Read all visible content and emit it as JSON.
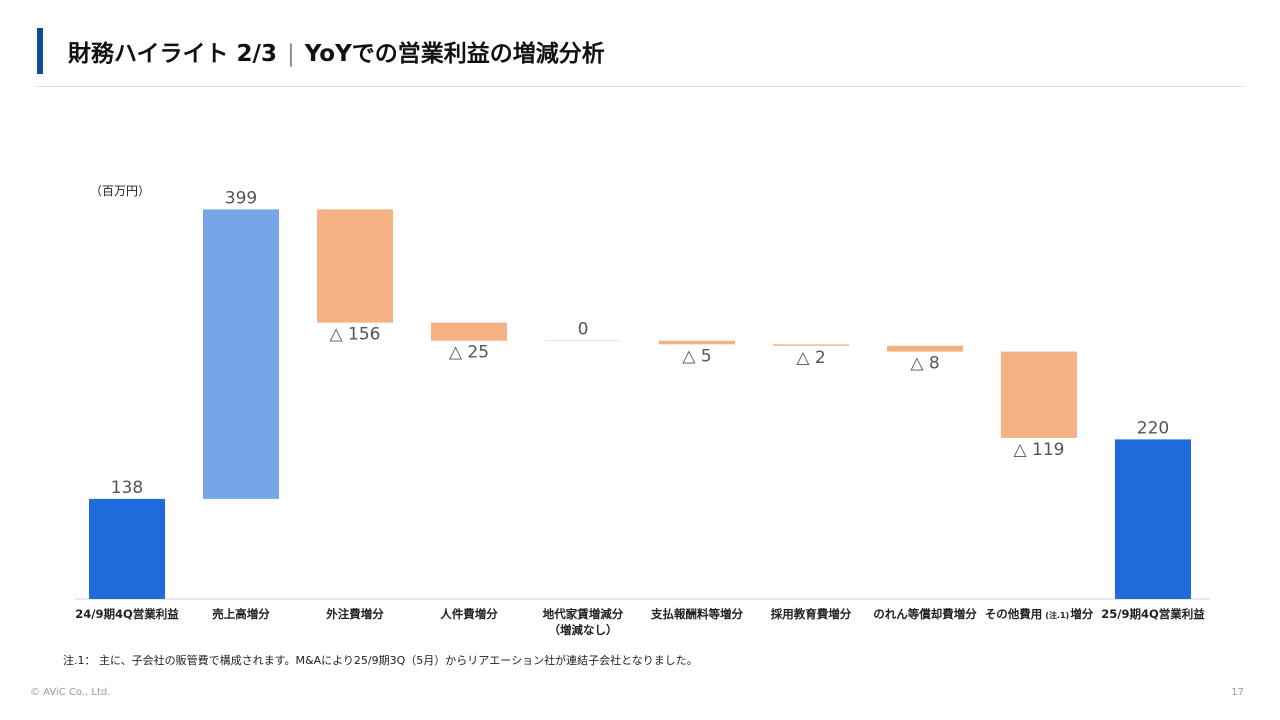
{
  "header": {
    "title_main": "財務ハイライト 2/3",
    "title_sep": "|",
    "title_sub": "YoYでの営業利益の増減分析",
    "accent_color": "#0f4c9a"
  },
  "chart_data": {
    "type": "waterfall",
    "unit_label": "（百万円）",
    "steps": [
      {
        "category": "24/9期4Q営業利益",
        "kind": "total",
        "value": 138,
        "label": "138"
      },
      {
        "category": "売上高増分",
        "kind": "increase",
        "value": 399,
        "label": "399"
      },
      {
        "category": "外注費増分",
        "kind": "decrease",
        "value": -156,
        "label": "△ 156"
      },
      {
        "category": "人件費増分",
        "kind": "decrease",
        "value": -25,
        "label": "△ 25"
      },
      {
        "category": "地代家賃増減分",
        "category_line2": "（増減なし）",
        "kind": "decrease",
        "value": 0,
        "label": "0"
      },
      {
        "category": "支払報酬料等増分",
        "kind": "decrease",
        "value": -5,
        "label": "△ 5"
      },
      {
        "category": "採用教育費増分",
        "kind": "decrease",
        "value": -2,
        "label": "△ 2"
      },
      {
        "category": "のれん等償却費増分",
        "kind": "decrease",
        "value": -8,
        "label": "△ 8"
      },
      {
        "category": "その他費用",
        "category_note": "(注.1)",
        "category_suffix": "増分",
        "kind": "decrease",
        "value": -119,
        "label": "△ 119"
      },
      {
        "category": "25/9期4Q営業利益",
        "kind": "total",
        "value": 220,
        "label": "220"
      }
    ],
    "colors": {
      "total": "#1f6bdc",
      "increase": "#76a5e8",
      "decrease": "#f3b184"
    }
  },
  "footnote": "注.1： 主に、子会社の販管費で構成されます。M&Aにより25/9期3Q（5月）からリアエーション社が連結子会社となりました。",
  "footer": {
    "copyright": "© AViC Co., Ltd.",
    "page_number": "17"
  }
}
